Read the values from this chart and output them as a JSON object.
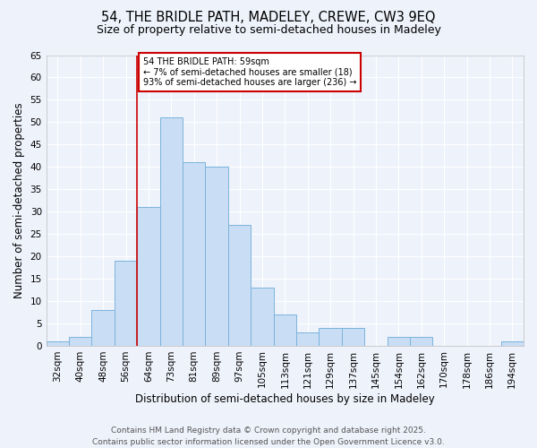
{
  "title_line1": "54, THE BRIDLE PATH, MADELEY, CREWE, CW3 9EQ",
  "title_line2": "Size of property relative to semi-detached houses in Madeley",
  "xlabel": "Distribution of semi-detached houses by size in Madeley",
  "ylabel": "Number of semi-detached properties",
  "categories": [
    "32sqm",
    "40sqm",
    "48sqm",
    "56sqm",
    "64sqm",
    "73sqm",
    "81sqm",
    "89sqm",
    "97sqm",
    "105sqm",
    "113sqm",
    "121sqm",
    "129sqm",
    "137sqm",
    "145sqm",
    "154sqm",
    "162sqm",
    "170sqm",
    "178sqm",
    "186sqm",
    "194sqm"
  ],
  "values": [
    1,
    2,
    8,
    19,
    31,
    51,
    41,
    40,
    27,
    13,
    7,
    3,
    4,
    4,
    0,
    2,
    2,
    0,
    0,
    0,
    1
  ],
  "bar_color": "#c9ddf5",
  "bar_edge_color": "#7ab4dc",
  "ylim": [
    0,
    65
  ],
  "yticks": [
    0,
    5,
    10,
    15,
    20,
    25,
    30,
    35,
    40,
    45,
    50,
    55,
    60,
    65
  ],
  "vline_index": 3.5,
  "annotation_title": "54 THE BRIDLE PATH: 59sqm",
  "annotation_line2": "← 7% of semi-detached houses are smaller (18)",
  "annotation_line3": "93% of semi-detached houses are larger (236) →",
  "annotation_box_color": "#ffffff",
  "annotation_box_edgecolor": "#cc0000",
  "vline_color": "#cc0000",
  "background_color": "#eef2fb",
  "footer_line1": "Contains HM Land Registry data © Crown copyright and database right 2025.",
  "footer_line2": "Contains public sector information licensed under the Open Government Licence v3.0.",
  "grid_color": "#ffffff",
  "title_fontsize": 10.5,
  "subtitle_fontsize": 9,
  "axis_label_fontsize": 8.5,
  "tick_fontsize": 7.5,
  "footer_fontsize": 6.5
}
